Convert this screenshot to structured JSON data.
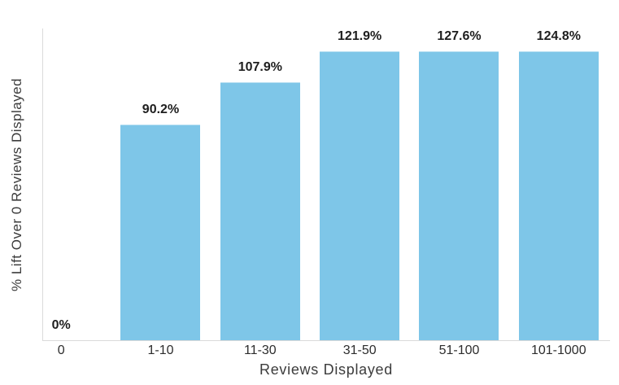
{
  "chart_data": {
    "type": "bar",
    "title": "",
    "categories": [
      "0",
      "1-10",
      "11-30",
      "31-50",
      "51-100",
      "101-1000"
    ],
    "values": [
      0,
      90.2,
      107.9,
      121.9,
      127.6,
      124.8
    ],
    "value_labels": [
      "0%",
      "90.2%",
      "107.9%",
      "121.9%",
      "127.6%",
      "124.8%"
    ],
    "xlabel": "Reviews Displayed",
    "ylabel": "% Lift Over 0 Reviews Displayed",
    "ylim": [
      0,
      130.5
    ],
    "grid": false,
    "legend": "none",
    "colors": {
      "bar": "#7EC6E8",
      "axis_line": "#DADADA",
      "value_label_text": "#1E1E1E",
      "tick_text": "#2D2D2D",
      "axis_title_text": "#3C3C3C"
    }
  }
}
